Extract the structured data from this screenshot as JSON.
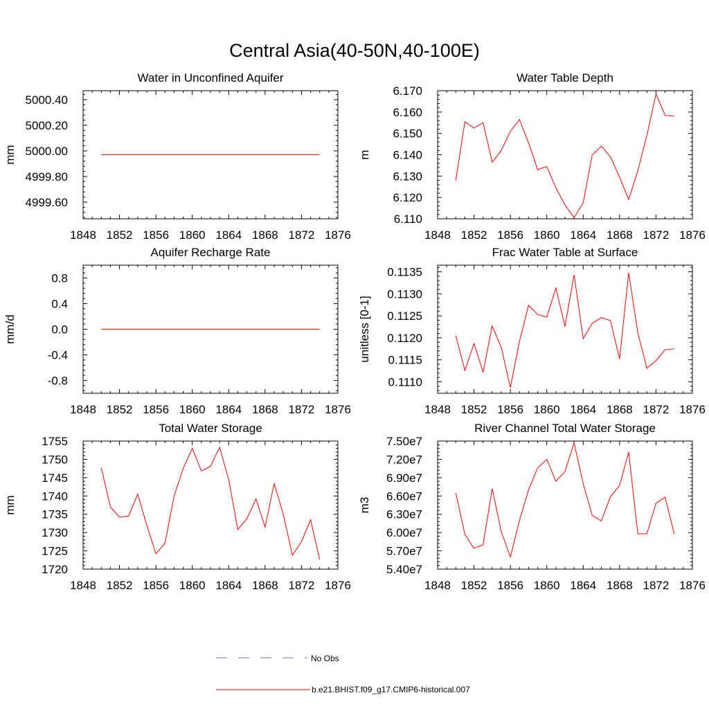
{
  "figure": {
    "title": "Central Asia(40-50N,40-100E)"
  },
  "legend": [
    {
      "label": "No Obs",
      "color": "#6b6bb0",
      "style": "dashed"
    },
    {
      "label": "b.e21.BHIST.f09_g17.CMIP6-historical.007",
      "color": "#ff0000",
      "style": "solid"
    }
  ],
  "chart_data": [
    {
      "type": "line",
      "title": "Water in Unconfined Aquifer",
      "ylabel": "mm",
      "xlim": [
        1848,
        1876
      ],
      "ylim": [
        4999.47,
        5000.47
      ],
      "xticks": [
        1848,
        1852,
        1856,
        1860,
        1864,
        1868,
        1872,
        1876
      ],
      "yticks": [
        4999.6,
        4999.8,
        5000.0,
        5000.2,
        5000.4
      ],
      "ytick_labels": [
        "4999.60",
        "4999.80",
        "5000.00",
        "5000.20",
        "5000.40"
      ],
      "series": [
        {
          "color": "#ff0000",
          "x": [
            1850,
            1851,
            1852,
            1853,
            1854,
            1855,
            1856,
            1857,
            1858,
            1859,
            1860,
            1861,
            1862,
            1863,
            1864,
            1865,
            1866,
            1867,
            1868,
            1869,
            1870,
            1871,
            1872,
            1873,
            1874
          ],
          "y": [
            4999.97,
            4999.97,
            4999.97,
            4999.97,
            4999.97,
            4999.97,
            4999.97,
            4999.97,
            4999.97,
            4999.97,
            4999.97,
            4999.97,
            4999.97,
            4999.97,
            4999.97,
            4999.97,
            4999.97,
            4999.97,
            4999.97,
            4999.97,
            4999.97,
            4999.97,
            4999.97,
            4999.97,
            4999.97
          ]
        }
      ]
    },
    {
      "type": "line",
      "title": "Water Table Depth",
      "ylabel": "m",
      "xlim": [
        1848,
        1876
      ],
      "ylim": [
        6.11,
        6.17
      ],
      "xticks": [
        1848,
        1852,
        1856,
        1860,
        1864,
        1868,
        1872,
        1876
      ],
      "yticks": [
        6.11,
        6.12,
        6.13,
        6.14,
        6.15,
        6.16,
        6.17
      ],
      "ytick_labels": [
        "6.110",
        "6.120",
        "6.130",
        "6.140",
        "6.150",
        "6.160",
        "6.170"
      ],
      "series": [
        {
          "color": "#ff0000",
          "x": [
            1850,
            1851,
            1852,
            1853,
            1854,
            1855,
            1856,
            1857,
            1858,
            1859,
            1860,
            1861,
            1862,
            1863,
            1864,
            1865,
            1866,
            1867,
            1868,
            1869,
            1870,
            1871,
            1872,
            1873,
            1874
          ],
          "y": [
            6.128,
            6.1555,
            6.1525,
            6.155,
            6.1365,
            6.142,
            6.151,
            6.1565,
            6.1455,
            6.133,
            6.1345,
            6.1245,
            6.1165,
            6.1105,
            6.1175,
            6.14,
            6.144,
            6.139,
            6.1295,
            6.119,
            6.1325,
            6.149,
            6.1685,
            6.1585,
            6.158
          ]
        }
      ]
    },
    {
      "type": "line",
      "title": "Aquifer Recharge Rate",
      "ylabel": "mm/d",
      "xlim": [
        1848,
        1876
      ],
      "ylim": [
        -1.0,
        1.0
      ],
      "xticks": [
        1848,
        1852,
        1856,
        1860,
        1864,
        1868,
        1872,
        1876
      ],
      "yticks": [
        -0.8,
        -0.4,
        0.0,
        0.4,
        0.8
      ],
      "ytick_labels": [
        "-0.8",
        "-0.4",
        "0.0",
        "0.4",
        "0.8"
      ],
      "series": [
        {
          "color": "#ff0000",
          "x": [
            1850,
            1851,
            1852,
            1853,
            1854,
            1855,
            1856,
            1857,
            1858,
            1859,
            1860,
            1861,
            1862,
            1863,
            1864,
            1865,
            1866,
            1867,
            1868,
            1869,
            1870,
            1871,
            1872,
            1873,
            1874
          ],
          "y": [
            0,
            0,
            0,
            0,
            0,
            0,
            0,
            0,
            0,
            0,
            0,
            0,
            0,
            0,
            0,
            0,
            0,
            0,
            0,
            0,
            0,
            0,
            0,
            0,
            0
          ]
        }
      ]
    },
    {
      "type": "line",
      "title": "Frac Water Table at Surface",
      "ylabel": "unitless [0-1]",
      "xlim": [
        1848,
        1876
      ],
      "ylim": [
        0.11074,
        0.11365
      ],
      "xticks": [
        1848,
        1852,
        1856,
        1860,
        1864,
        1868,
        1872,
        1876
      ],
      "yticks": [
        0.111,
        0.1115,
        0.112,
        0.1125,
        0.113,
        0.1135
      ],
      "ytick_labels": [
        "0.1110",
        "0.1115",
        "0.1120",
        "0.1125",
        "0.1130",
        "0.1135"
      ],
      "series": [
        {
          "color": "#ff0000",
          "x": [
            1850,
            1851,
            1852,
            1853,
            1854,
            1855,
            1856,
            1857,
            1858,
            1859,
            1860,
            1861,
            1862,
            1863,
            1864,
            1865,
            1866,
            1867,
            1868,
            1869,
            1870,
            1871,
            1872,
            1873,
            1874
          ],
          "y": [
            0.11205,
            0.11126,
            0.11187,
            0.11122,
            0.11227,
            0.11178,
            0.11087,
            0.11192,
            0.11274,
            0.11253,
            0.11247,
            0.11313,
            0.11226,
            0.11343,
            0.11198,
            0.11233,
            0.11246,
            0.11239,
            0.11152,
            0.11348,
            0.11212,
            0.11131,
            0.11148,
            0.11173,
            0.11175
          ]
        }
      ]
    },
    {
      "type": "line",
      "title": "Total Water Storage",
      "ylabel": "mm",
      "xlim": [
        1848,
        1876
      ],
      "ylim": [
        1720,
        1755
      ],
      "xticks": [
        1848,
        1852,
        1856,
        1860,
        1864,
        1868,
        1872,
        1876
      ],
      "yticks": [
        1720,
        1725,
        1730,
        1735,
        1740,
        1745,
        1750,
        1755
      ],
      "ytick_labels": [
        "1720",
        "1725",
        "1730",
        "1735",
        "1740",
        "1745",
        "1750",
        "1755"
      ],
      "series": [
        {
          "color": "#ff0000",
          "x": [
            1850,
            1851,
            1852,
            1853,
            1854,
            1855,
            1856,
            1857,
            1858,
            1859,
            1860,
            1861,
            1862,
            1863,
            1864,
            1865,
            1866,
            1867,
            1868,
            1869,
            1870,
            1871,
            1872,
            1873,
            1874
          ],
          "y": [
            1747.7,
            1737.0,
            1734.2,
            1734.5,
            1740.5,
            1732.0,
            1724.2,
            1727.1,
            1740.0,
            1747.5,
            1753.0,
            1746.8,
            1748.1,
            1753.3,
            1744.5,
            1730.8,
            1733.8,
            1739.2,
            1731.5,
            1743.4,
            1735.0,
            1723.8,
            1727.5,
            1733.5,
            1722.6
          ]
        }
      ]
    },
    {
      "type": "line",
      "title": "River Channel Total Water Storage",
      "ylabel": "m3",
      "xlim": [
        1848,
        1876
      ],
      "ylim": [
        54000000,
        75000000
      ],
      "xticks": [
        1848,
        1852,
        1856,
        1860,
        1864,
        1868,
        1872,
        1876
      ],
      "yticks": [
        54000000,
        57000000,
        60000000,
        63000000,
        66000000,
        69000000,
        72000000,
        75000000
      ],
      "ytick_labels": [
        "5.40e7",
        "5.70e7",
        "6.00e7",
        "6.30e7",
        "6.60e7",
        "6.90e7",
        "7.20e7",
        "7.50e7"
      ],
      "series": [
        {
          "color": "#ff0000",
          "x": [
            1850,
            1851,
            1852,
            1853,
            1854,
            1855,
            1856,
            1857,
            1858,
            1859,
            1860,
            1861,
            1862,
            1863,
            1864,
            1865,
            1866,
            1867,
            1868,
            1869,
            1870,
            1871,
            1872,
            1873,
            1874
          ],
          "y": [
            66500000,
            59700000,
            57400000,
            58000000,
            67200000,
            60100000,
            56000000,
            62000000,
            67000000,
            70600000,
            72000000,
            68400000,
            70000000,
            74700000,
            68000000,
            62800000,
            61900000,
            65900000,
            67700000,
            73200000,
            59800000,
            59800000,
            64800000,
            65800000,
            59800000
          ]
        }
      ]
    }
  ]
}
